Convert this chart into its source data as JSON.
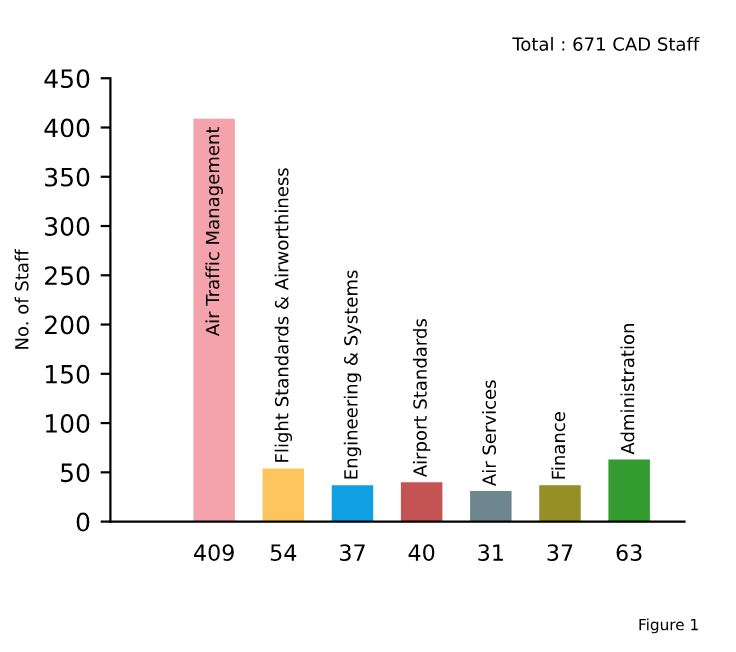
{
  "chart_data": {
    "type": "bar",
    "categories": [
      "Air Traffic Management",
      "Flight Standards & Airworthiness",
      "Engineering & Systems",
      "Airport Standards",
      "Air Services",
      "Finance",
      "Administration"
    ],
    "values": [
      409,
      54,
      37,
      40,
      31,
      37,
      63
    ],
    "colors": [
      "#f4a3ad",
      "#fcc55e",
      "#109fe0",
      "#c45353",
      "#6e8690",
      "#958f25",
      "#339b30"
    ],
    "ylabel": "No. of Staff",
    "ylim": [
      0,
      450
    ],
    "yticks": [
      0,
      50,
      100,
      150,
      200,
      250,
      300,
      350,
      400,
      450
    ],
    "data_labels": true,
    "annotations": [
      "Total : 671 CAD Staff",
      "Figure 1"
    ]
  }
}
